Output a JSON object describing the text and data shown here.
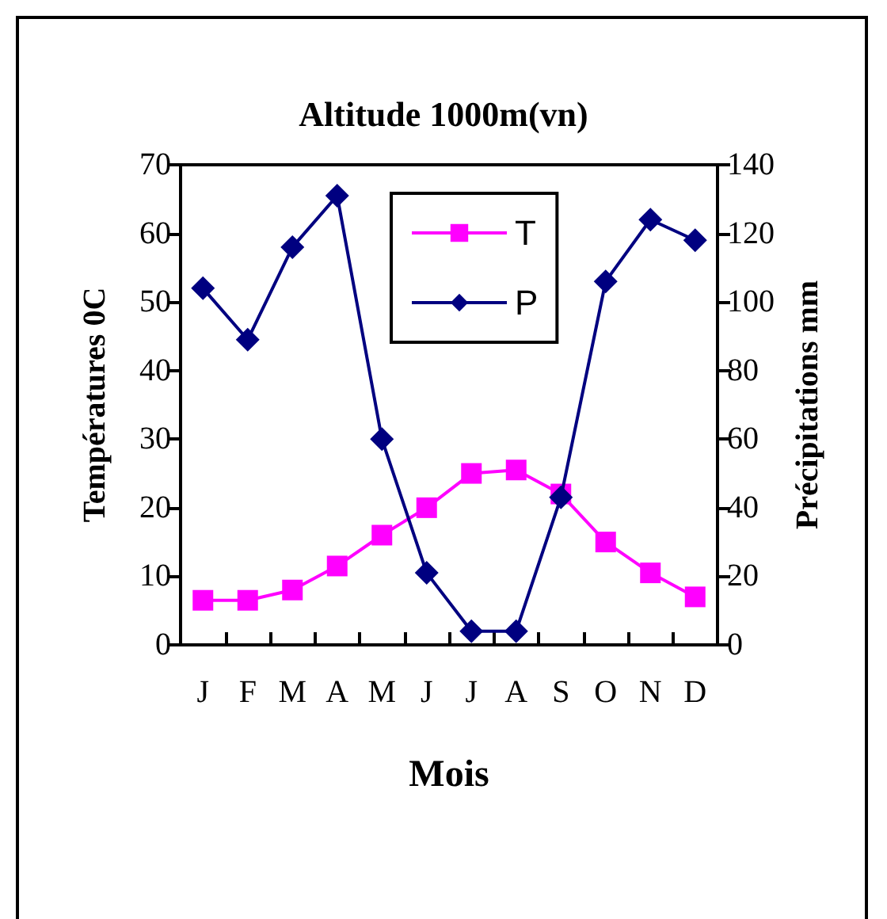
{
  "chart_data": {
    "type": "line",
    "title": "Altitude 1000m(vn)",
    "xlabel": "Mois",
    "ylabel": "Températures 0C",
    "y2label": "Précipitations mm",
    "categories": [
      "J",
      "F",
      "M",
      "A",
      "M",
      "J",
      "J",
      "A",
      "S",
      "O",
      "N",
      "D"
    ],
    "series": [
      {
        "name": "T",
        "color": "#ff00ff",
        "marker": "square",
        "values": [
          6.5,
          6.5,
          8,
          11.5,
          16,
          20,
          25,
          25.5,
          22,
          15,
          10.5,
          7
        ]
      },
      {
        "name": "P",
        "color": "#000080",
        "marker": "diamond",
        "axis": "y2",
        "values": [
          104,
          89,
          116,
          131,
          60,
          21,
          4,
          4,
          43,
          106,
          124,
          118
        ]
      }
    ],
    "ylim": [
      0,
      70
    ],
    "yticks": [
      0,
      10,
      20,
      30,
      40,
      50,
      60,
      70
    ],
    "y2lim": [
      0,
      140
    ],
    "y2ticks": [
      0,
      20,
      40,
      60,
      80,
      100,
      120,
      140
    ],
    "grid": false,
    "legend": "top"
  }
}
